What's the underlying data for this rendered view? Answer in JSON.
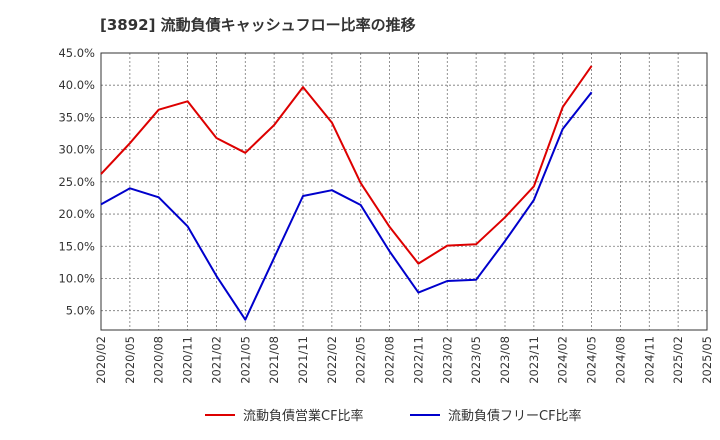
{
  "chart_data": {
    "type": "line",
    "title": "[3892]  流動負債キャッシュフロー比率の推移",
    "xlabel": "",
    "ylabel": "",
    "categories": [
      "2020/02",
      "2020/05",
      "2020/08",
      "2020/11",
      "2021/02",
      "2021/05",
      "2021/08",
      "2021/11",
      "2022/02",
      "2022/05",
      "2022/08",
      "2022/11",
      "2023/02",
      "2023/05",
      "2023/08",
      "2023/11",
      "2024/02",
      "2024/05",
      "2024/08",
      "2024/11",
      "2025/02",
      "2025/05"
    ],
    "ylim": [
      2.0,
      45.0
    ],
    "yticks": [
      5.0,
      10.0,
      15.0,
      20.0,
      25.0,
      30.0,
      35.0,
      40.0,
      45.0
    ],
    "ytick_labels": [
      "5.0%",
      "10.0%",
      "15.0%",
      "20.0%",
      "25.0%",
      "30.0%",
      "35.0%",
      "40.0%",
      "45.0%"
    ],
    "grid": true,
    "legend_position": "bottom",
    "series": [
      {
        "name": "流動負債営業CF比率",
        "color": "#dd0000",
        "values": [
          26.2,
          31.0,
          36.2,
          37.5,
          31.8,
          29.5,
          33.8,
          39.7,
          34.2,
          24.8,
          18.0,
          12.3,
          15.1,
          15.3,
          19.5,
          24.3,
          36.6,
          43.0,
          null,
          null,
          null,
          null
        ]
      },
      {
        "name": "流動負債フリーCF比率",
        "color": "#0000cc",
        "values": [
          21.5,
          24.0,
          22.6,
          18.1,
          10.4,
          3.6,
          13.2,
          22.8,
          23.7,
          21.4,
          14.2,
          7.8,
          9.6,
          9.8,
          15.8,
          22.2,
          33.2,
          38.9,
          null,
          null,
          null,
          null
        ]
      }
    ]
  }
}
